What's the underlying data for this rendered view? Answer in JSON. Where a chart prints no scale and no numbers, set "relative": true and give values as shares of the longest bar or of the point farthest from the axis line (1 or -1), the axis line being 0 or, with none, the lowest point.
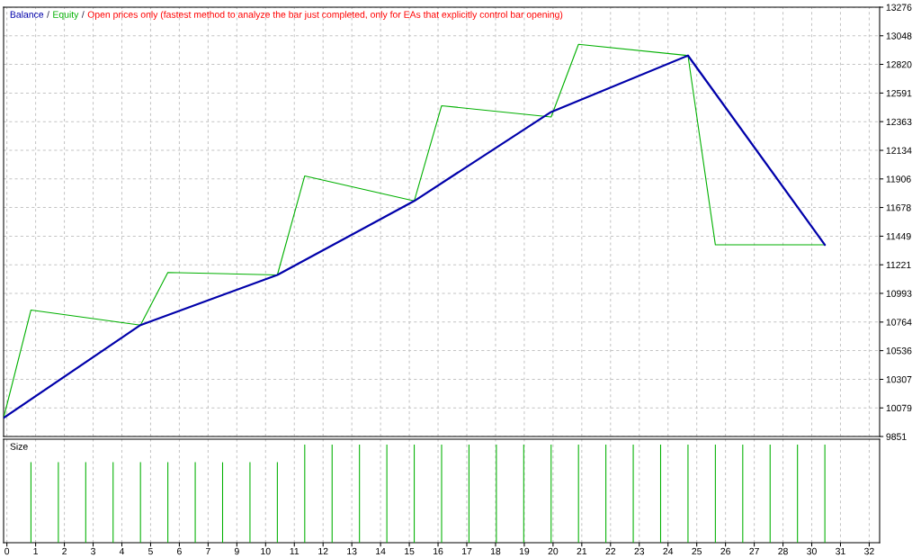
{
  "chart_data": [
    {
      "type": "line",
      "annotations": [
        "/",
        "/",
        "Open prices only (fastest method to analyze the bar just completed, only for EAs that explicitly control bar opening)"
      ],
      "series": [
        {
          "name": "Balance",
          "color": "#0000aa",
          "x": [
            0,
            5,
            10,
            15,
            20,
            25,
            30
          ],
          "values": [
            10000,
            10740,
            11140,
            11730,
            12440,
            12890,
            11380
          ]
        },
        {
          "name": "Equity",
          "color": "#00b000",
          "x": [
            0,
            1,
            5,
            6,
            10,
            11,
            15,
            16,
            20,
            21,
            25,
            26,
            30
          ],
          "values": [
            10000,
            10860,
            10740,
            11160,
            11140,
            11930,
            11730,
            12490,
            12400,
            12980,
            12890,
            11380,
            11380
          ]
        }
      ],
      "xlim": [
        0,
        32
      ],
      "xticks": [
        {
          "value": 0.12,
          "label": null
        },
        {
          "value": 1.17,
          "label": null
        },
        {
          "value": 2.22,
          "label": null
        },
        {
          "value": 3.27,
          "label": null
        },
        {
          "value": 4.32,
          "label": null
        },
        {
          "value": 5.37,
          "label": null
        },
        {
          "value": 6.42,
          "label": null
        },
        {
          "value": 7.47,
          "label": null
        },
        {
          "value": 8.52,
          "label": null
        },
        {
          "value": 9.57,
          "label": null
        },
        {
          "value": 10.62,
          "label": null
        },
        {
          "value": 11.67,
          "label": null
        },
        {
          "value": 12.72,
          "label": null
        },
        {
          "value": 13.77,
          "label": null
        },
        {
          "value": 14.82,
          "label": null
        },
        {
          "value": 15.87,
          "label": null
        },
        {
          "value": 16.92,
          "label": null
        },
        {
          "value": 17.97,
          "label": null
        },
        {
          "value": 19.02,
          "label": null
        },
        {
          "value": 20.07,
          "label": null
        },
        {
          "value": 21.12,
          "label": null
        },
        {
          "value": 22.17,
          "label": null
        },
        {
          "value": 23.22,
          "label": null
        },
        {
          "value": 24.27,
          "label": null
        },
        {
          "value": 25.32,
          "label": null
        },
        {
          "value": 26.37,
          "label": null
        },
        {
          "value": 27.42,
          "label": null
        },
        {
          "value": 28.47,
          "label": null
        },
        {
          "value": 29.52,
          "label": null
        },
        {
          "value": 30.57,
          "label": null
        },
        {
          "value": 31.62,
          "label": null
        }
      ],
      "ylim": [
        9851,
        13276
      ],
      "yticks": [
        9851,
        10079,
        10307,
        10536,
        10764,
        10993,
        11221,
        11449,
        11678,
        11906,
        12134,
        12363,
        12591,
        12820,
        13048,
        13276
      ],
      "grid": true,
      "legend": "top left",
      "tick_labels": "y"
    },
    {
      "type": "bar",
      "title": "Size",
      "relative": true,
      "color": "#00b000",
      "x": [
        1,
        2,
        3,
        4,
        5,
        6,
        7,
        8,
        9,
        10,
        11,
        12,
        13,
        14,
        15,
        16,
        17,
        18,
        19,
        20,
        21,
        22,
        23,
        24,
        25,
        26,
        27,
        28,
        29,
        30
      ],
      "values": [
        0.82,
        0.82,
        0.82,
        0.82,
        0.82,
        0.82,
        0.82,
        0.82,
        0.82,
        0.82,
        1,
        1,
        1,
        1,
        1,
        1,
        1,
        1,
        1,
        1,
        1,
        1,
        1,
        1,
        1,
        1,
        1,
        1,
        1,
        1
      ],
      "xlim": [
        0,
        32
      ],
      "xticks": [
        {
          "value": 0.12,
          "label": "0"
        },
        {
          "value": 1.17,
          "label": "1"
        },
        {
          "value": 2.22,
          "label": "2"
        },
        {
          "value": 3.27,
          "label": "3"
        },
        {
          "value": 4.32,
          "label": "4"
        },
        {
          "value": 5.37,
          "label": "5"
        },
        {
          "value": 6.42,
          "label": "6"
        },
        {
          "value": 7.47,
          "label": "7"
        },
        {
          "value": 8.52,
          "label": "9"
        },
        {
          "value": 9.57,
          "label": "10"
        },
        {
          "value": 10.62,
          "label": "11"
        },
        {
          "value": 11.67,
          "label": "12"
        },
        {
          "value": 12.72,
          "label": "13"
        },
        {
          "value": 13.77,
          "label": "14"
        },
        {
          "value": 14.82,
          "label": "15"
        },
        {
          "value": 15.87,
          "label": "16"
        },
        {
          "value": 16.92,
          "label": "17"
        },
        {
          "value": 17.97,
          "label": "18"
        },
        {
          "value": 19.02,
          "label": "19"
        },
        {
          "value": 20.07,
          "label": "20"
        },
        {
          "value": 21.12,
          "label": "21"
        },
        {
          "value": 22.17,
          "label": "22"
        },
        {
          "value": 23.22,
          "label": "23"
        },
        {
          "value": 24.27,
          "label": "24"
        },
        {
          "value": 25.32,
          "label": "25"
        },
        {
          "value": 26.37,
          "label": "26"
        },
        {
          "value": 27.42,
          "label": "27"
        },
        {
          "value": 28.47,
          "label": "28"
        },
        {
          "value": 29.52,
          "label": "30"
        },
        {
          "value": 30.57,
          "label": "31"
        },
        {
          "value": 31.62,
          "label": "32"
        }
      ],
      "grid": "x"
    }
  ]
}
